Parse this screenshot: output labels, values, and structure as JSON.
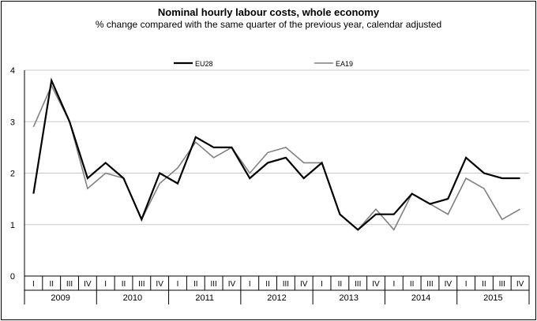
{
  "chart_data": {
    "type": "line",
    "title": "Nominal hourly labour costs, whole economy",
    "subtitle": "% change compared with the same quarter of the previous year, calendar adjusted",
    "xlabel": "",
    "ylabel": "",
    "ylim": [
      0,
      4
    ],
    "yticks": [
      "0",
      "1",
      "2",
      "3",
      "4"
    ],
    "quarters": [
      "I",
      "II",
      "III",
      "IV"
    ],
    "years": [
      "2009",
      "2010",
      "2011",
      "2012",
      "2013",
      "2014",
      "2015"
    ],
    "grid": true,
    "legend_position": "top",
    "series": [
      {
        "name": "EU28",
        "color": "#000000",
        "values": [
          1.6,
          3.8,
          3.0,
          1.9,
          2.2,
          1.9,
          1.1,
          2.0,
          1.8,
          2.7,
          2.5,
          2.5,
          1.9,
          2.2,
          2.3,
          1.9,
          2.2,
          1.2,
          0.9,
          1.2,
          1.2,
          1.6,
          1.4,
          1.5,
          2.3,
          2.0,
          1.9,
          1.9
        ]
      },
      {
        "name": "EA19",
        "color": "#808080",
        "values": [
          2.9,
          3.7,
          3.0,
          1.7,
          2.0,
          1.9,
          1.1,
          1.8,
          2.1,
          2.6,
          2.3,
          2.5,
          2.0,
          2.4,
          2.5,
          2.2,
          2.2,
          1.2,
          0.9,
          1.3,
          0.9,
          1.6,
          1.4,
          1.2,
          1.9,
          1.7,
          1.1,
          1.3
        ]
      }
    ]
  }
}
